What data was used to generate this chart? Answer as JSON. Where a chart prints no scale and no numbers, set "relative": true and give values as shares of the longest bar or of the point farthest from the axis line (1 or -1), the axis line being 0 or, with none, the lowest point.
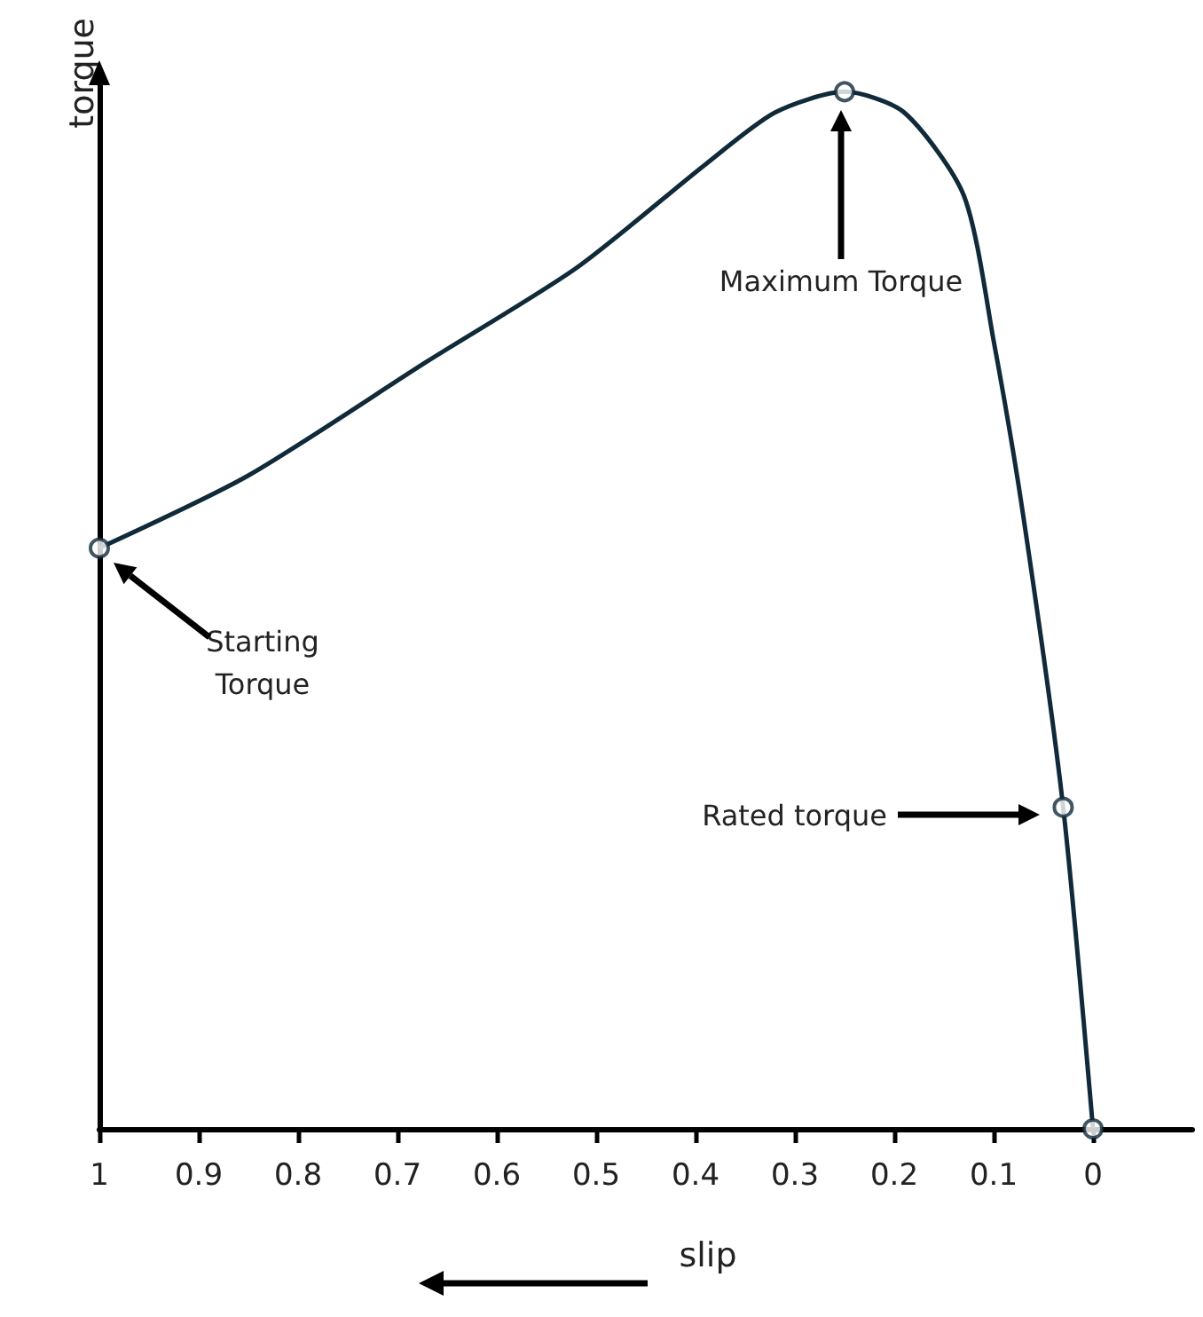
{
  "chart_data": {
    "type": "line",
    "relative": true,
    "xlabel": "slip",
    "ylabel": "torque",
    "xlim": [
      1,
      -0.1
    ],
    "xticks": [
      1,
      0.9,
      0.8,
      0.7,
      0.6,
      0.5,
      0.4,
      0.3,
      0.2,
      0.1,
      0
    ],
    "series": [
      {
        "color": "#102a3a",
        "marker": "none",
        "x": [
          1,
          0.85,
          0.67,
          0.52,
          0.39,
          0.32,
          0.25,
          0.19,
          0.13,
          0.1,
          0.07,
          0.03,
          0
        ],
        "values": [
          0.56,
          0.63,
          0.74,
          0.83,
          0.93,
          0.98,
          1,
          0.98,
          0.9,
          0.76,
          0.59,
          0.31,
          0
        ]
      },
      {
        "type": "scatter",
        "color": "#102a3a",
        "marker": "circle",
        "x": [
          1,
          0.25,
          0.03,
          0
        ],
        "values": [
          0.56,
          1,
          0.31,
          0
        ]
      }
    ],
    "annotations": [
      "Maximum Torque",
      "Starting\nTorque",
      "Rated torque"
    ]
  }
}
